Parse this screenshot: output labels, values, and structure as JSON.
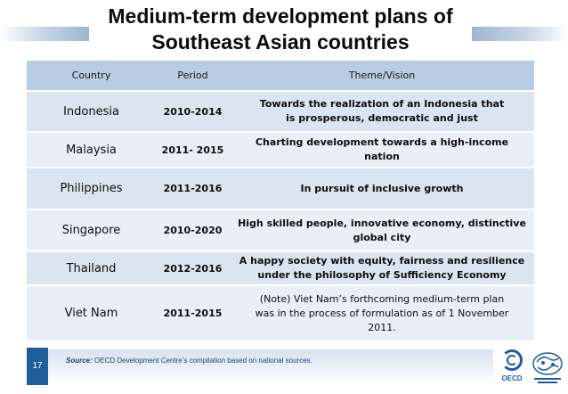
{
  "title": {
    "line1": "Medium-term development plans of",
    "line2": "Southeast Asian countries"
  },
  "table": {
    "headers": {
      "country": "Country",
      "period": "Period",
      "theme": "Theme/Vision"
    },
    "rows": [
      {
        "country": "Indonesia",
        "period": "2010-2014",
        "theme_line1": "Towards the realization of an Indonesia that",
        "theme_line2": "is prosperous, democratic and just",
        "theme_line3": ""
      },
      {
        "country": "Malaysia",
        "period": "2011- 2015",
        "theme_line1": "Charting development towards a high-income nation",
        "theme_line2": "",
        "theme_line3": ""
      },
      {
        "country": "Philippines",
        "period": "2011-2016",
        "theme_line1": "In pursuit of inclusive growth",
        "theme_line2": "",
        "theme_line3": ""
      },
      {
        "country": "Singapore",
        "period": "2010-2020",
        "theme_line1": "High skilled people, innovative economy, distinctive",
        "theme_line2": "global city",
        "theme_line3": ""
      },
      {
        "country": "Thailand",
        "period": "2012-2016",
        "theme_line1": "A happy society with equity, fairness and resilience",
        "theme_line2": "under the philosophy of Sufficiency Economy",
        "theme_line3": ""
      },
      {
        "country": "Viet Nam",
        "period": "2011-2015",
        "theme_line1": "(Note) Viet Nam’s forthcoming medium-term plan",
        "theme_line2": "was in the process of formulation as of 1 November",
        "theme_line3": "2011."
      }
    ]
  },
  "footer": {
    "source_label": "Source:",
    "source_text": " OECD Development Centre’s compilation  based on national sources.",
    "page_number": "17",
    "oecd_logo_text": "OECD"
  },
  "colors": {
    "header_bg": "#b8cce4",
    "row_bg": "#dbe5f1",
    "row_alt_bg": "#e9eff7",
    "accent_blue": "#1f5e9c"
  }
}
